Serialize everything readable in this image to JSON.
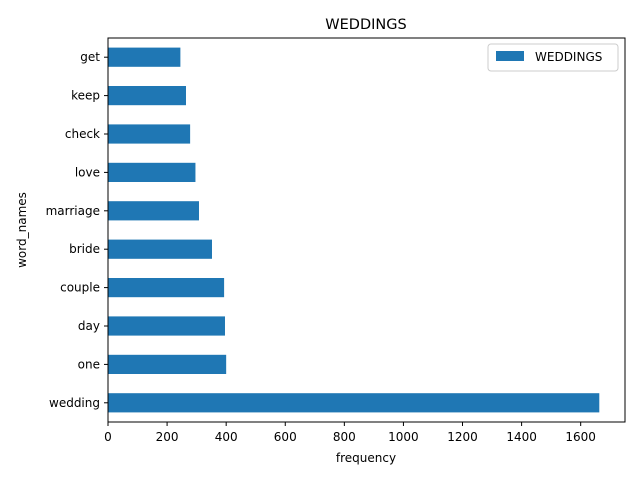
{
  "chart_data": {
    "type": "bar",
    "orientation": "horizontal",
    "title": "WEDDINGS",
    "xlabel": "frequency",
    "ylabel": "word_names",
    "categories": [
      "wedding",
      "one",
      "day",
      "couple",
      "bride",
      "marriage",
      "love",
      "check",
      "keep",
      "get"
    ],
    "series": [
      {
        "name": "WEDDINGS",
        "values": [
          1663,
          400,
          396,
          393,
          352,
          308,
          296,
          278,
          264,
          245
        ]
      }
    ],
    "xlim": [
      0,
      1750
    ],
    "xticks": [
      0,
      200,
      400,
      600,
      800,
      1000,
      1200,
      1400,
      1600
    ],
    "legend_position": "top-right",
    "grid": false,
    "bar_color": "#1f77b4"
  }
}
